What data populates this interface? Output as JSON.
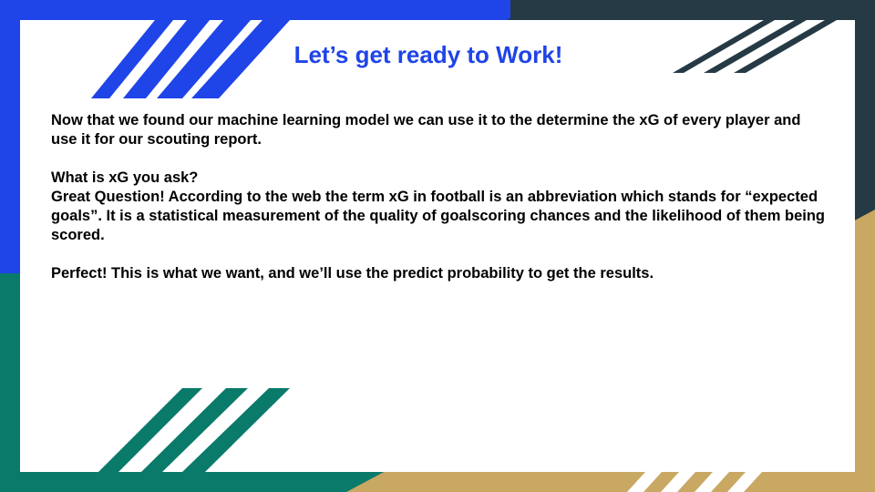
{
  "slide": {
    "title": "Let’s get ready to Work!",
    "paragraphs": {
      "p1": "Now that we found our machine learning model we can use it to the determine the xG of every player and use it for our scouting report.",
      "p2": "What is xG you ask?",
      "p3": "Great Question! According to the web the term xG in football is an abbreviation which stands for “expected goals”. It is a statistical measurement of the quality of goalscoring chances and the likelihood of them being scored.",
      "p4": "Perfect! This is what we want, and we’ll use the predict probability to get the results."
    }
  },
  "colors": {
    "blue": "#1f44e8",
    "dark_slate": "#253a45",
    "green": "#0a7a6a",
    "tan": "#c9a864",
    "text": "#000000"
  }
}
